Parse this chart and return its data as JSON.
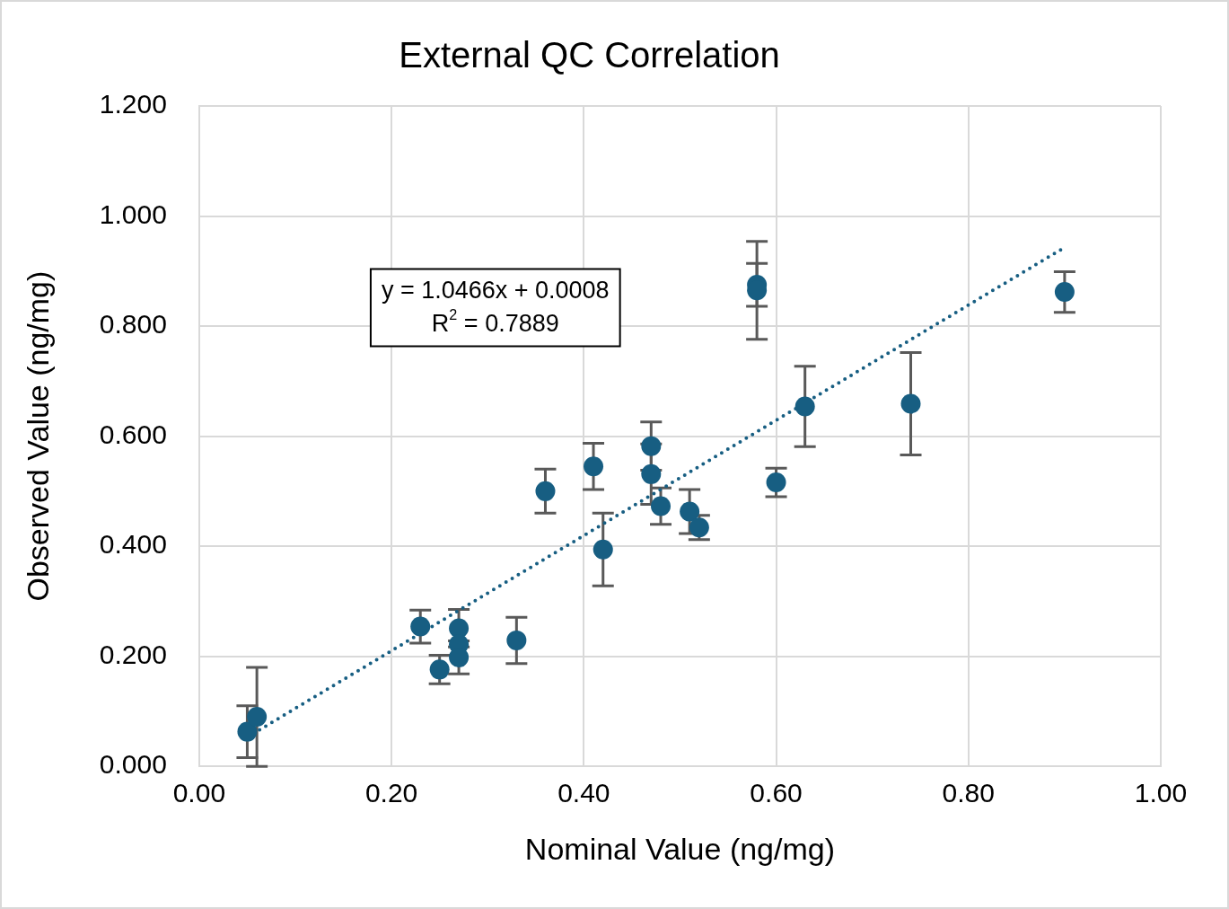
{
  "chart_data": {
    "type": "scatter",
    "title": "External QC Correlation",
    "xlabel": "Nominal Value (ng/mg)",
    "ylabel": "Observed Value (ng/mg)",
    "xlim": [
      0,
      1
    ],
    "ylim": [
      0,
      1.2
    ],
    "xticks": [
      {
        "value": 0,
        "label": "0.00"
      },
      {
        "value": 0.2,
        "label": "0.20"
      },
      {
        "value": 0.4,
        "label": "0.40"
      },
      {
        "value": 0.6,
        "label": "0.60"
      },
      {
        "value": 0.8,
        "label": "0.80"
      },
      {
        "value": 1,
        "label": "1.00"
      }
    ],
    "yticks": [
      {
        "value": 0,
        "label": "0.000"
      },
      {
        "value": 0.2,
        "label": "0.200"
      },
      {
        "value": 0.4,
        "label": "0.400"
      },
      {
        "value": 0.6,
        "label": "0.600"
      },
      {
        "value": 0.8,
        "label": "0.800"
      },
      {
        "value": 1,
        "label": "1.000"
      },
      {
        "value": 1.2,
        "label": "1.200"
      }
    ],
    "grid": true,
    "legend": false,
    "marker": "circle",
    "series": [
      {
        "color": "#175e82",
        "x": [
          0.05,
          0.06,
          0.23,
          0.25,
          0.27,
          0.27,
          0.27,
          0.33,
          0.36,
          0.41,
          0.42,
          0.47,
          0.47,
          0.48,
          0.51,
          0.52,
          0.58,
          0.58,
          0.6,
          0.63,
          0.74,
          0.9
        ],
        "values": [
          0.063,
          0.09,
          0.254,
          0.176,
          0.251,
          0.222,
          0.198,
          0.229,
          0.5,
          0.545,
          0.394,
          0.582,
          0.531,
          0.473,
          0.463,
          0.434,
          0.875,
          0.865,
          0.516,
          0.654,
          0.659,
          0.862
        ],
        "errors": [
          0.047,
          0.09,
          0.03,
          0.026,
          0.034,
          null,
          0.03,
          0.042,
          0.04,
          0.042,
          0.066,
          0.044,
          0.055,
          0.033,
          0.04,
          0.022,
          0.039,
          0.089,
          0.026,
          0.073,
          0.093,
          0.037
        ]
      },
      {
        "type": "line",
        "color": "#175e82",
        "line_style": "dotted",
        "marker": "none",
        "x": [
          0.05,
          0.9
        ],
        "values": [
          0.053,
          0.943
        ]
      }
    ],
    "annotations": [
      "y = 1.0466x + 0.0008",
      "R$^{2}$ = 0.7889"
    ]
  }
}
